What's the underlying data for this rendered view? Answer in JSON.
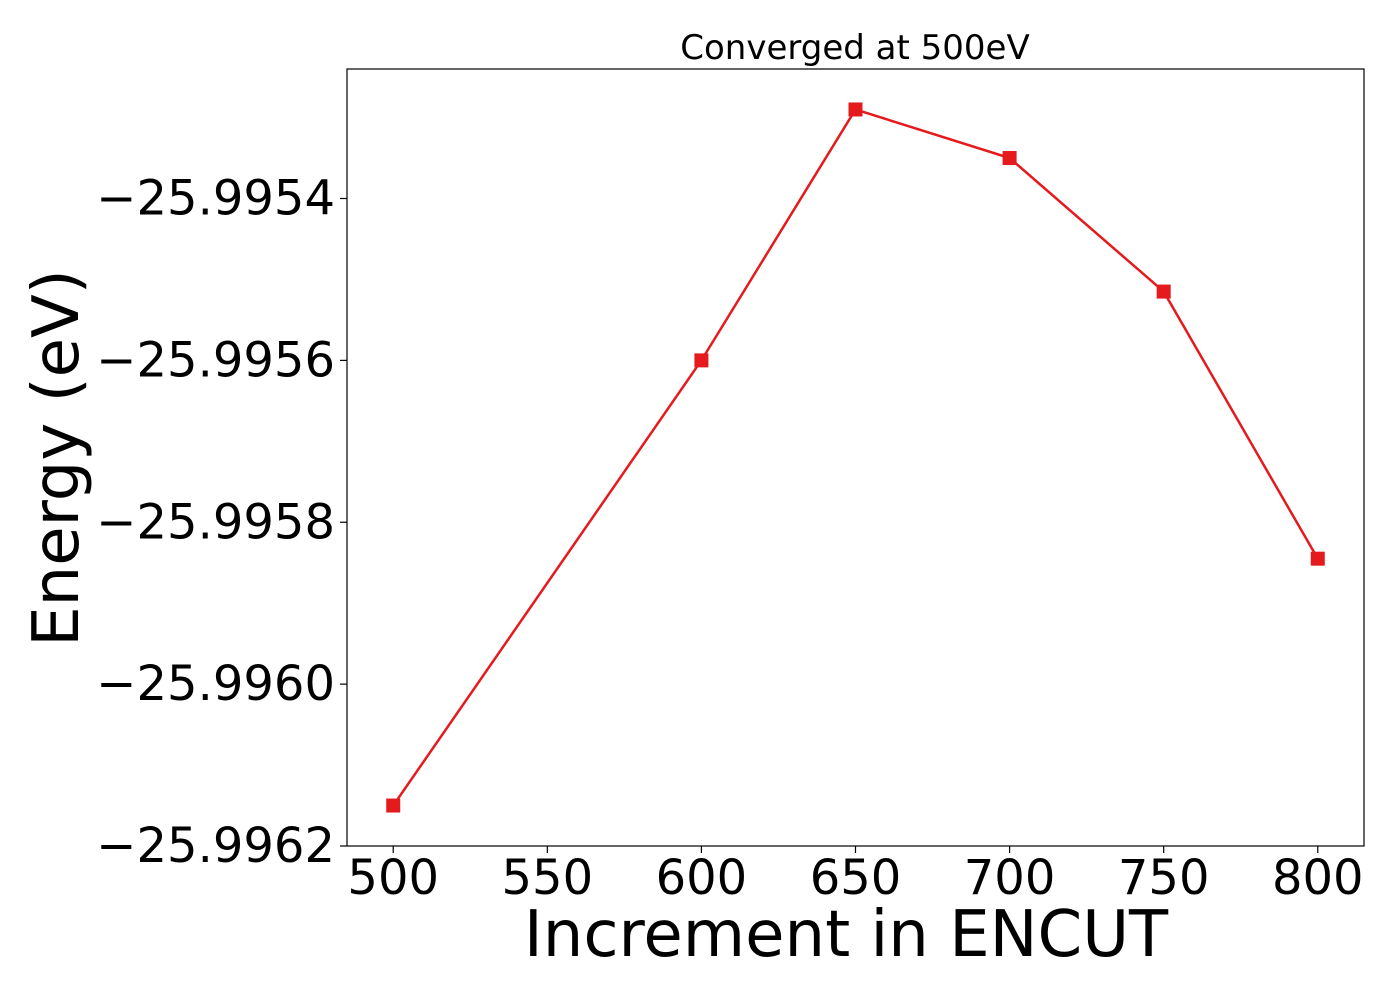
{
  "chart_data": {
    "type": "line",
    "title": "Converged at 500eV",
    "xlabel": "Increment in ENCUT",
    "ylabel": "Energy (eV)",
    "x": [
      500,
      600,
      650,
      700,
      750,
      800
    ],
    "series": [
      {
        "values": [
          -25.99615,
          -25.9956,
          -25.99529,
          -25.99535,
          -25.995515,
          -25.995845
        ],
        "color": "#e41a1c",
        "marker": "square"
      }
    ],
    "xticks": [
      500,
      550,
      600,
      650,
      700,
      750,
      800
    ],
    "xtick_labels": [
      "500",
      "550",
      "600",
      "650",
      "700",
      "750",
      "800"
    ],
    "yticks": [
      -25.9962,
      -25.996,
      -25.9958,
      -25.9956,
      -25.9954
    ],
    "ytick_labels": [
      "−25.9962",
      "−25.9960",
      "−25.9958",
      "−25.9956",
      "−25.9954"
    ],
    "xlim": [
      485,
      815
    ],
    "ylim": [
      -25.9962,
      -25.99524
    ],
    "grid": false,
    "legend": false
  }
}
